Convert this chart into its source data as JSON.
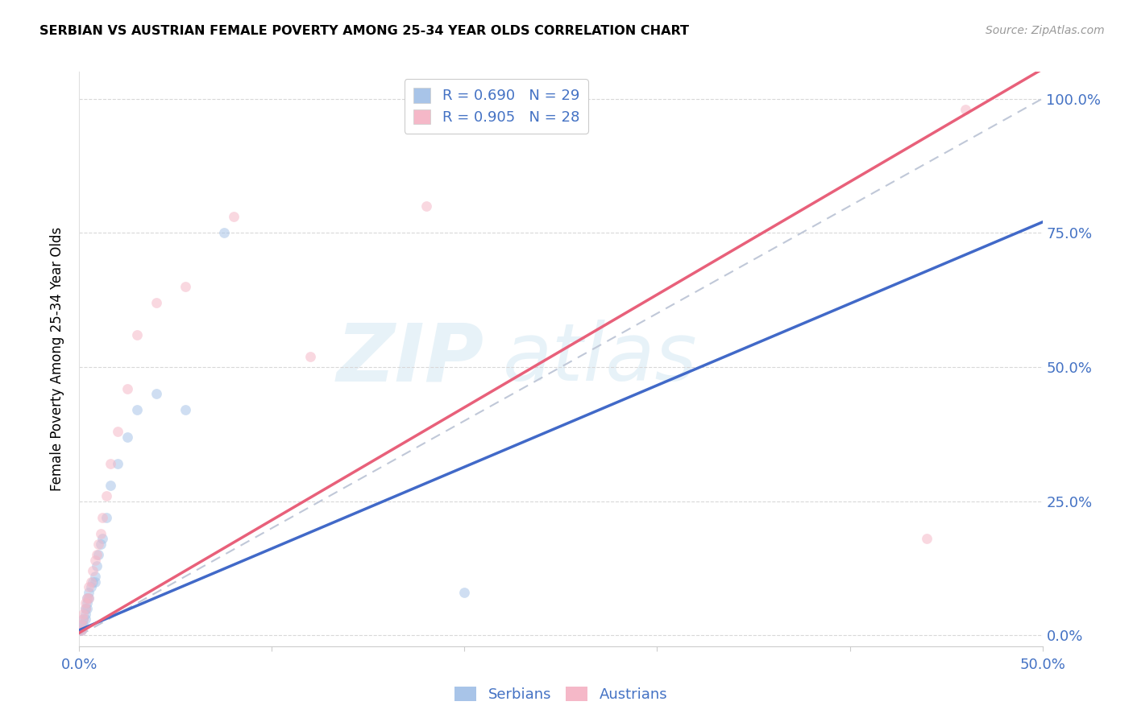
{
  "title": "SERBIAN VS AUSTRIAN FEMALE POVERTY AMONG 25-34 YEAR OLDS CORRELATION CHART",
  "source": "Source: ZipAtlas.com",
  "ylabel": "Female Poverty Among 25-34 Year Olds",
  "watermark_text": "ZIP",
  "watermark_text2": "atlas",
  "xlim": [
    0.0,
    0.5
  ],
  "ylim": [
    -0.02,
    1.05
  ],
  "xticks": [
    0.0,
    0.1,
    0.2,
    0.3,
    0.4,
    0.5
  ],
  "yticks_right": [
    0.0,
    0.25,
    0.5,
    0.75,
    1.0
  ],
  "ytick_labels_right": [
    "0.0%",
    "25.0%",
    "50.0%",
    "75.0%",
    "100.0%"
  ],
  "xtick_labels": [
    "0.0%",
    "",
    "",
    "",
    "",
    "50.0%"
  ],
  "serbian_color": "#a8c4e8",
  "austrian_color": "#f5b8c8",
  "serbian_line_color": "#4169c8",
  "austrian_line_color": "#e8607a",
  "serbian_R": 0.69,
  "serbian_N": 29,
  "austrian_R": 0.905,
  "austrian_N": 28,
  "serbians_x": [
    0.001,
    0.001,
    0.002,
    0.002,
    0.003,
    0.003,
    0.003,
    0.004,
    0.004,
    0.004,
    0.005,
    0.005,
    0.006,
    0.007,
    0.008,
    0.008,
    0.009,
    0.01,
    0.011,
    0.012,
    0.014,
    0.016,
    0.02,
    0.025,
    0.03,
    0.04,
    0.055,
    0.075,
    0.2
  ],
  "serbians_y": [
    0.01,
    0.02,
    0.02,
    0.03,
    0.03,
    0.04,
    0.05,
    0.05,
    0.06,
    0.07,
    0.07,
    0.08,
    0.09,
    0.1,
    0.1,
    0.11,
    0.13,
    0.15,
    0.17,
    0.18,
    0.22,
    0.28,
    0.32,
    0.37,
    0.42,
    0.45,
    0.42,
    0.75,
    0.08
  ],
  "austrians_x": [
    0.001,
    0.001,
    0.002,
    0.002,
    0.003,
    0.003,
    0.004,
    0.005,
    0.005,
    0.006,
    0.007,
    0.008,
    0.009,
    0.01,
    0.011,
    0.012,
    0.014,
    0.016,
    0.02,
    0.025,
    0.03,
    0.04,
    0.055,
    0.08,
    0.12,
    0.18,
    0.44,
    0.46
  ],
  "austrians_y": [
    0.01,
    0.02,
    0.03,
    0.04,
    0.05,
    0.06,
    0.07,
    0.07,
    0.09,
    0.1,
    0.12,
    0.14,
    0.15,
    0.17,
    0.19,
    0.22,
    0.26,
    0.32,
    0.38,
    0.46,
    0.56,
    0.62,
    0.65,
    0.78,
    0.52,
    0.8,
    0.18,
    0.98
  ],
  "background_color": "#ffffff",
  "grid_color": "#d8d8d8",
  "marker_size": 85,
  "marker_alpha": 0.55,
  "ref_line_color": "#c0c8d8",
  "ref_line_slope": 2.0,
  "serbian_line_slope": 1.52,
  "serbian_line_intercept": 0.01,
  "austrian_line_slope": 2.1,
  "austrian_line_intercept": 0.005
}
